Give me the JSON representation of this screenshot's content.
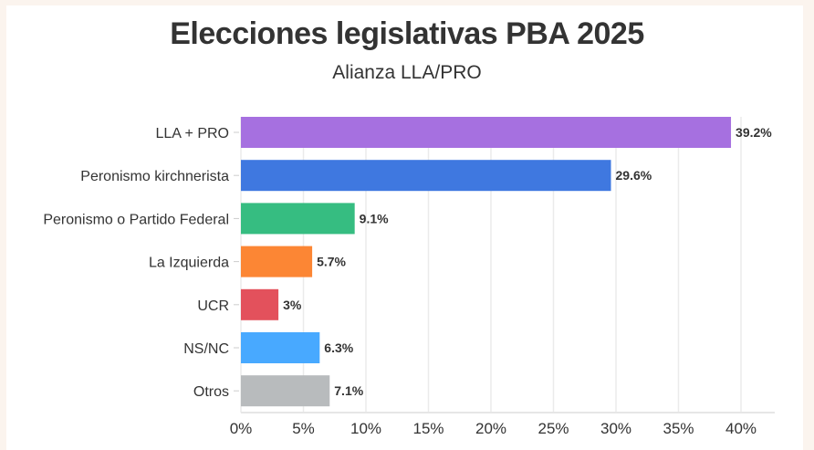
{
  "chart_data": {
    "type": "bar",
    "orientation": "horizontal",
    "title": "Elecciones legislativas PBA 2025",
    "subtitle": "Alianza LLA/PRO",
    "categories": [
      "LLA + PRO",
      "Peronismo kirchnerista",
      "Peronismo o Partido Federal",
      "La Izquierda",
      "UCR",
      "NS/NC",
      "Otros"
    ],
    "values": [
      39.2,
      29.6,
      9.1,
      5.7,
      3,
      6.3,
      7.1
    ],
    "labels": [
      "39.2%",
      "29.6%",
      "9.1%",
      "5.7%",
      "3%",
      "6.3%",
      "7.1%"
    ],
    "colors": [
      "#a670e0",
      "#3f78e0",
      "#36bd81",
      "#fc8634",
      "#e3515c",
      "#48a9ff",
      "#b8bbbd"
    ],
    "xticks": [
      "0%",
      "5%",
      "10%",
      "15%",
      "20%",
      "25%",
      "30%",
      "35%",
      "40%"
    ],
    "xtick_values": [
      0,
      5,
      10,
      15,
      20,
      25,
      30,
      35,
      40
    ],
    "xlim": [
      0,
      42.7
    ],
    "xlabel": "",
    "ylabel": "",
    "grid": true
  }
}
